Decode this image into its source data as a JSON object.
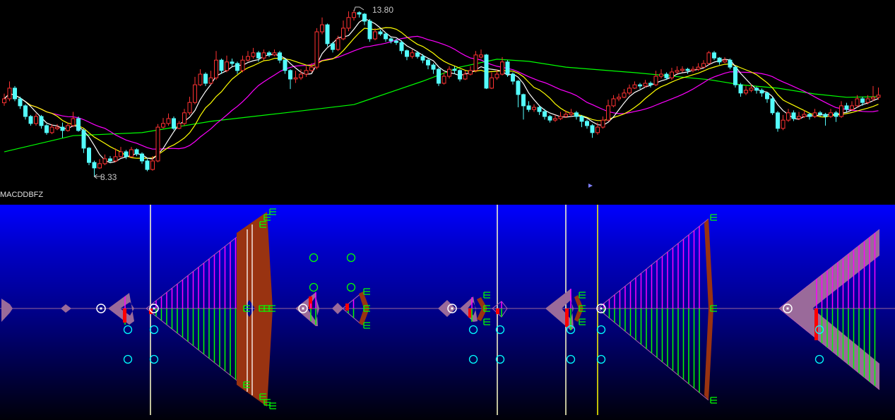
{
  "indicator_title": "MACDDBFZ",
  "colors": {
    "up": "#ff3232",
    "down": "#54fcfc",
    "ma5": "#ffffff",
    "ma10": "#ffff00",
    "ma20": "#ff00ff",
    "ma60": "#00ff00",
    "fan_up": "#ff00ff",
    "fan_down": "#00ff00",
    "band": "#993311",
    "chevron": "#9a6a9a",
    "panel_top": "#0000ff"
  },
  "chart_data": {
    "type": "candlestick",
    "title": "",
    "annotations": {
      "high_label": "13.80",
      "low_label": "8.33"
    },
    "candles_ohlc": [
      [
        10.75,
        11.05,
        10.65,
        10.88
      ],
      [
        10.88,
        11.45,
        10.8,
        11.23
      ],
      [
        11.23,
        11.3,
        10.8,
        10.88
      ],
      [
        10.88,
        10.95,
        10.55,
        10.65
      ],
      [
        10.65,
        10.7,
        10.2,
        10.3
      ],
      [
        10.3,
        10.35,
        10.0,
        10.07
      ],
      [
        10.07,
        10.4,
        10.0,
        10.3
      ],
      [
        10.3,
        10.35,
        9.9,
        10.0
      ],
      [
        10.0,
        10.05,
        9.7,
        9.77
      ],
      [
        9.77,
        10.05,
        9.72,
        9.95
      ],
      [
        9.9,
        10.05,
        9.85,
        9.95
      ],
      [
        9.95,
        10.1,
        9.6,
        9.84
      ],
      [
        9.84,
        10.1,
        9.8,
        10.0
      ],
      [
        10.0,
        10.45,
        9.95,
        10.23
      ],
      [
        10.23,
        10.3,
        9.8,
        9.84
      ],
      [
        9.84,
        9.9,
        9.1,
        9.26
      ],
      [
        9.26,
        9.3,
        8.7,
        8.79
      ],
      [
        8.79,
        8.85,
        8.33,
        8.61
      ],
      [
        8.61,
        8.9,
        8.58,
        8.75
      ],
      [
        8.75,
        9.05,
        8.7,
        8.91
      ],
      [
        8.91,
        9.0,
        8.78,
        8.84
      ],
      [
        8.84,
        9.25,
        8.8,
        8.98
      ],
      [
        8.98,
        9.3,
        8.95,
        9.14
      ],
      [
        9.14,
        9.2,
        8.9,
        8.98
      ],
      [
        8.98,
        9.3,
        8.95,
        9.21
      ],
      [
        9.21,
        9.25,
        9.0,
        9.07
      ],
      [
        9.07,
        9.12,
        8.75,
        8.84
      ],
      [
        8.84,
        8.9,
        8.5,
        8.56
      ],
      [
        8.56,
        9.0,
        8.52,
        8.84
      ],
      [
        8.84,
        10.05,
        8.8,
        9.95
      ],
      [
        9.95,
        10.25,
        9.9,
        10.07
      ],
      [
        10.07,
        10.4,
        10.0,
        10.23
      ],
      [
        10.23,
        10.3,
        9.85,
        9.91
      ],
      [
        9.91,
        10.15,
        9.88,
        10.07
      ],
      [
        10.07,
        10.55,
        10.0,
        10.42
      ],
      [
        10.42,
        10.95,
        10.35,
        10.76
      ],
      [
        10.76,
        11.6,
        10.7,
        11.34
      ],
      [
        11.34,
        11.85,
        11.3,
        11.69
      ],
      [
        11.69,
        11.75,
        11.3,
        11.39
      ],
      [
        11.39,
        11.8,
        11.35,
        11.57
      ],
      [
        11.57,
        12.45,
        11.5,
        12.15
      ],
      [
        12.15,
        12.2,
        11.7,
        11.81
      ],
      [
        11.81,
        12.3,
        11.75,
        12.09
      ],
      [
        12.09,
        12.2,
        11.95,
        12.04
      ],
      [
        12.04,
        12.1,
        11.7,
        11.81
      ],
      [
        11.81,
        12.3,
        11.75,
        12.15
      ],
      [
        12.15,
        12.45,
        12.1,
        12.27
      ],
      [
        12.27,
        12.55,
        12.2,
        12.39
      ],
      [
        12.39,
        12.45,
        12.1,
        12.22
      ],
      [
        12.22,
        12.5,
        12.15,
        12.39
      ],
      [
        12.39,
        12.45,
        12.25,
        12.32
      ],
      [
        12.32,
        12.5,
        12.28,
        12.39
      ],
      [
        12.39,
        12.45,
        12.05,
        12.15
      ],
      [
        12.15,
        12.2,
        11.7,
        11.81
      ],
      [
        11.81,
        11.85,
        11.2,
        11.53
      ],
      [
        11.53,
        11.8,
        11.4,
        11.57
      ],
      [
        11.57,
        11.85,
        11.5,
        11.69
      ],
      [
        11.69,
        11.95,
        11.6,
        11.81
      ],
      [
        11.81,
        12.05,
        11.75,
        11.92
      ],
      [
        11.92,
        13.2,
        11.85,
        13.08
      ],
      [
        13.08,
        13.55,
        13.0,
        13.31
      ],
      [
        13.31,
        13.35,
        12.6,
        12.69
      ],
      [
        12.69,
        12.75,
        12.4,
        12.5
      ],
      [
        12.5,
        12.95,
        12.45,
        12.85
      ],
      [
        12.85,
        13.45,
        12.8,
        13.2
      ],
      [
        13.2,
        13.75,
        13.1,
        13.55
      ],
      [
        13.55,
        13.8,
        13.45,
        13.71
      ],
      [
        13.71,
        13.75,
        13.55,
        13.66
      ],
      [
        13.66,
        13.7,
        13.3,
        13.43
      ],
      [
        13.43,
        13.5,
        12.75,
        12.85
      ],
      [
        12.85,
        13.2,
        12.8,
        13.08
      ],
      [
        13.08,
        13.15,
        12.95,
        13.01
      ],
      [
        13.01,
        13.05,
        12.75,
        12.85
      ],
      [
        12.85,
        12.9,
        12.7,
        12.78
      ],
      [
        12.78,
        12.85,
        12.65,
        12.73
      ],
      [
        12.73,
        12.8,
        12.35,
        12.46
      ],
      [
        12.46,
        12.5,
        12.15,
        12.27
      ],
      [
        12.27,
        12.5,
        12.2,
        12.39
      ],
      [
        12.39,
        12.45,
        12.2,
        12.27
      ],
      [
        12.27,
        12.35,
        12.05,
        12.15
      ],
      [
        12.15,
        12.2,
        11.85,
        11.99
      ],
      [
        11.99,
        12.05,
        11.7,
        11.85
      ],
      [
        11.85,
        11.9,
        11.3,
        11.39
      ],
      [
        11.39,
        11.75,
        11.35,
        11.62
      ],
      [
        11.62,
        11.95,
        11.55,
        11.85
      ],
      [
        11.85,
        11.95,
        11.7,
        11.81
      ],
      [
        11.81,
        11.85,
        11.45,
        11.53
      ],
      [
        11.53,
        11.8,
        11.5,
        11.69
      ],
      [
        11.69,
        11.95,
        11.65,
        11.81
      ],
      [
        11.81,
        12.45,
        11.75,
        12.32
      ],
      [
        12.25,
        12.5,
        12.2,
        12.32
      ],
      [
        12.32,
        12.35,
        11.2,
        11.23
      ],
      [
        11.23,
        11.75,
        11.2,
        11.57
      ],
      [
        11.57,
        11.85,
        11.5,
        11.69
      ],
      [
        11.69,
        12.25,
        11.65,
        12.09
      ],
      [
        12.09,
        12.15,
        11.6,
        11.69
      ],
      [
        11.69,
        11.75,
        11.35,
        11.46
      ],
      [
        11.46,
        11.5,
        10.6,
        11.02
      ],
      [
        11.02,
        11.05,
        10.2,
        10.65
      ],
      [
        10.65,
        10.8,
        10.45,
        10.53
      ],
      [
        10.53,
        10.7,
        10.45,
        10.6
      ],
      [
        10.6,
        10.65,
        10.35,
        10.46
      ],
      [
        10.46,
        10.55,
        10.2,
        10.3
      ],
      [
        10.3,
        10.35,
        10.1,
        10.18
      ],
      [
        10.18,
        10.35,
        10.12,
        10.23
      ],
      [
        10.23,
        10.45,
        10.18,
        10.3
      ],
      [
        10.3,
        10.5,
        10.25,
        10.37
      ],
      [
        10.37,
        10.55,
        10.3,
        10.42
      ],
      [
        10.42,
        10.48,
        10.2,
        10.3
      ],
      [
        10.3,
        10.35,
        9.95,
        10.14
      ],
      [
        10.14,
        10.2,
        9.9,
        10.0
      ],
      [
        10.0,
        10.05,
        9.6,
        9.77
      ],
      [
        9.77,
        10.1,
        9.7,
        9.95
      ],
      [
        9.95,
        10.3,
        9.9,
        10.18
      ],
      [
        10.18,
        10.85,
        10.15,
        10.65
      ],
      [
        10.65,
        11.0,
        10.6,
        10.88
      ],
      [
        10.88,
        11.05,
        10.8,
        10.93
      ],
      [
        10.93,
        11.2,
        10.9,
        11.07
      ],
      [
        11.07,
        11.35,
        11.0,
        11.23
      ],
      [
        11.23,
        11.45,
        11.2,
        11.34
      ],
      [
        11.34,
        11.4,
        11.2,
        11.3
      ],
      [
        11.3,
        11.5,
        11.25,
        11.39
      ],
      [
        11.39,
        11.45,
        11.25,
        11.34
      ],
      [
        11.34,
        11.8,
        11.3,
        11.62
      ],
      [
        11.62,
        11.85,
        11.55,
        11.69
      ],
      [
        11.69,
        11.75,
        11.5,
        11.57
      ],
      [
        11.57,
        11.9,
        11.5,
        11.76
      ],
      [
        11.76,
        11.95,
        11.7,
        11.81
      ],
      [
        11.81,
        11.95,
        11.75,
        11.85
      ],
      [
        11.85,
        11.9,
        11.7,
        11.81
      ],
      [
        11.81,
        11.95,
        11.75,
        11.85
      ],
      [
        11.85,
        12.05,
        11.8,
        11.92
      ],
      [
        11.92,
        12.15,
        11.9,
        12.04
      ],
      [
        12.04,
        12.45,
        12.0,
        12.39
      ],
      [
        12.39,
        12.45,
        12.15,
        12.22
      ],
      [
        12.22,
        12.25,
        12.0,
        12.09
      ],
      [
        12.09,
        12.25,
        12.05,
        12.15
      ],
      [
        12.15,
        12.2,
        11.85,
        11.92
      ],
      [
        11.92,
        11.95,
        11.25,
        11.34
      ],
      [
        11.34,
        11.4,
        10.95,
        11.07
      ],
      [
        11.07,
        11.3,
        11.0,
        11.16
      ],
      [
        11.16,
        11.35,
        11.1,
        11.23
      ],
      [
        11.23,
        11.28,
        11.05,
        11.16
      ],
      [
        11.16,
        11.22,
        10.95,
        11.07
      ],
      [
        11.07,
        11.1,
        10.75,
        10.88
      ],
      [
        10.88,
        10.95,
        10.35,
        10.42
      ],
      [
        10.42,
        10.48,
        9.8,
        9.91
      ],
      [
        9.91,
        10.35,
        9.85,
        10.18
      ],
      [
        10.18,
        10.55,
        10.12,
        10.42
      ],
      [
        10.42,
        10.5,
        10.15,
        10.23
      ],
      [
        10.23,
        10.45,
        10.18,
        10.3
      ],
      [
        10.3,
        10.5,
        10.25,
        10.37
      ],
      [
        10.37,
        10.42,
        10.2,
        10.3
      ],
      [
        10.3,
        10.55,
        10.25,
        10.42
      ],
      [
        10.42,
        10.48,
        10.3,
        10.37
      ],
      [
        10.37,
        10.42,
        10.0,
        10.3
      ],
      [
        10.3,
        10.55,
        10.25,
        10.42
      ],
      [
        10.42,
        10.48,
        10.12,
        10.3
      ],
      [
        10.3,
        10.8,
        10.25,
        10.65
      ],
      [
        10.65,
        10.75,
        10.45,
        10.53
      ],
      [
        10.53,
        10.8,
        10.48,
        10.65
      ],
      [
        10.65,
        11.0,
        10.6,
        10.88
      ],
      [
        10.88,
        10.95,
        10.65,
        10.76
      ],
      [
        10.76,
        11.0,
        10.7,
        10.88
      ],
      [
        10.88,
        11.3,
        10.8,
        10.93
      ],
      [
        10.93,
        11.25,
        10.85,
        11.0
      ]
    ],
    "moving_averages": [
      5,
      10,
      20
    ],
    "ma60_points": [
      [
        0,
        9.14
      ],
      [
        13,
        9.67
      ],
      [
        26,
        9.77
      ],
      [
        39,
        10.14
      ],
      [
        53,
        10.42
      ],
      [
        66,
        10.69
      ],
      [
        79,
        11.46
      ],
      [
        86,
        11.92
      ],
      [
        93,
        12.18
      ],
      [
        99,
        12.11
      ],
      [
        106,
        11.92
      ],
      [
        119,
        11.74
      ],
      [
        133,
        11.51
      ],
      [
        139,
        11.34
      ],
      [
        146,
        11.23
      ],
      [
        153,
        11.04
      ],
      [
        159,
        10.93
      ],
      [
        165,
        10.95
      ]
    ]
  }
}
